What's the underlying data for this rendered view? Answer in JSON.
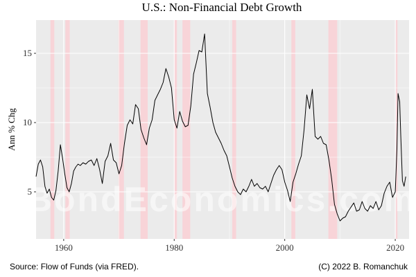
{
  "chart_data": {
    "type": "line",
    "title": "U.S.: Non-Financial Debt Growth",
    "xlabel": "",
    "ylabel": "Ann % Chg",
    "xlim": [
      1955,
      2022.5
    ],
    "ylim": [
      1.6,
      17.4
    ],
    "x_ticks": [
      1960,
      1980,
      2000,
      2020
    ],
    "y_ticks": [
      5,
      10,
      15
    ],
    "grid": true,
    "recessions": [
      [
        1957.6,
        1958.3
      ],
      [
        1960.3,
        1961.1
      ],
      [
        1969.9,
        1970.9
      ],
      [
        1973.9,
        1975.2
      ],
      [
        1980.0,
        1980.5
      ],
      [
        1981.5,
        1982.9
      ],
      [
        1990.5,
        1991.2
      ],
      [
        2001.2,
        2001.9
      ],
      [
        2007.9,
        2009.5
      ],
      [
        2020.1,
        2020.4
      ]
    ],
    "series": [
      {
        "name": "",
        "color": "#000000",
        "x": [
          1955.0,
          1955.4,
          1955.8,
          1956.2,
          1956.6,
          1957.0,
          1957.4,
          1957.8,
          1958.2,
          1958.6,
          1959.0,
          1959.4,
          1959.8,
          1960.2,
          1960.6,
          1961.0,
          1961.4,
          1961.8,
          1962.2,
          1962.6,
          1963.0,
          1963.5,
          1964.0,
          1964.5,
          1965.0,
          1965.5,
          1966.0,
          1966.5,
          1967.0,
          1967.5,
          1968.0,
          1968.5,
          1969.0,
          1969.5,
          1970.0,
          1970.5,
          1971.0,
          1971.5,
          1972.0,
          1972.5,
          1973.0,
          1973.5,
          1974.0,
          1974.5,
          1975.0,
          1975.5,
          1976.0,
          1976.5,
          1977.0,
          1977.5,
          1978.0,
          1978.5,
          1979.0,
          1979.5,
          1980.0,
          1980.5,
          1981.0,
          1981.5,
          1982.0,
          1982.5,
          1983.0,
          1983.5,
          1984.0,
          1984.5,
          1985.0,
          1985.5,
          1986.0,
          1986.5,
          1987.0,
          1987.5,
          1988.0,
          1988.5,
          1989.0,
          1989.5,
          1990.0,
          1990.5,
          1991.0,
          1991.5,
          1992.0,
          1992.5,
          1993.0,
          1993.5,
          1994.0,
          1994.5,
          1995.0,
          1995.5,
          1996.0,
          1996.5,
          1997.0,
          1997.5,
          1998.0,
          1998.5,
          1999.0,
          1999.5,
          2000.0,
          2000.5,
          2001.0,
          2001.5,
          2002.0,
          2002.5,
          2003.0,
          2003.5,
          2004.0,
          2004.5,
          2005.0,
          2005.5,
          2006.0,
          2006.5,
          2007.0,
          2007.5,
          2008.0,
          2008.5,
          2009.0,
          2009.5,
          2010.0,
          2010.5,
          2011.0,
          2011.5,
          2012.0,
          2012.5,
          2013.0,
          2013.5,
          2014.0,
          2014.5,
          2015.0,
          2015.5,
          2016.0,
          2016.5,
          2017.0,
          2017.5,
          2018.0,
          2018.5,
          2019.0,
          2019.5,
          2020.0,
          2020.3,
          2020.5,
          2020.8,
          2021.0,
          2021.3,
          2021.6,
          2021.9
        ],
        "y": [
          6.1,
          7.0,
          7.3,
          6.8,
          5.4,
          4.9,
          5.2,
          4.6,
          4.4,
          5.1,
          6.5,
          8.4,
          7.4,
          6.3,
          5.3,
          5.0,
          5.6,
          6.5,
          6.8,
          7.0,
          6.9,
          7.1,
          7.0,
          7.2,
          7.3,
          6.9,
          7.4,
          6.6,
          5.6,
          7.2,
          7.6,
          8.5,
          7.3,
          7.1,
          6.3,
          6.9,
          8.5,
          9.8,
          10.2,
          9.9,
          11.3,
          11.0,
          9.5,
          8.9,
          8.4,
          9.6,
          10.2,
          11.6,
          12.0,
          12.4,
          12.9,
          13.9,
          13.3,
          12.5,
          10.2,
          9.6,
          10.8,
          10.1,
          9.7,
          9.8,
          11.2,
          13.5,
          14.3,
          15.2,
          15.1,
          16.4,
          12.1,
          11.1,
          10.0,
          9.3,
          8.9,
          8.5,
          8.0,
          7.6,
          6.8,
          6.0,
          5.4,
          5.0,
          4.8,
          5.2,
          5.0,
          5.4,
          5.9,
          5.4,
          5.6,
          5.3,
          5.2,
          5.4,
          5.0,
          5.6,
          6.2,
          6.6,
          6.9,
          6.6,
          5.7,
          5.1,
          4.3,
          5.7,
          6.3,
          7.0,
          7.6,
          9.5,
          12.0,
          11.0,
          12.4,
          9.0,
          8.8,
          9.0,
          8.5,
          8.4,
          7.3,
          5.9,
          4.1,
          3.4,
          2.9,
          3.1,
          3.2,
          3.6,
          3.9,
          4.2,
          3.6,
          3.7,
          4.3,
          3.8,
          3.6,
          4.0,
          3.8,
          4.3,
          3.7,
          4.0,
          4.9,
          5.4,
          5.7,
          4.6,
          5.0,
          8.1,
          12.1,
          11.5,
          9.1,
          5.8,
          5.4,
          6.1
        ]
      }
    ]
  },
  "footer": {
    "source": "Source: Flow of Funds (via FRED).",
    "credit": "(C) 2022 B. Romanchuk"
  },
  "watermark": "BondEconomics.com",
  "colors": {
    "panel": "#ebebeb",
    "grid_major": "#ffffff",
    "recession": "#f8d4d8",
    "line": "#000000"
  }
}
